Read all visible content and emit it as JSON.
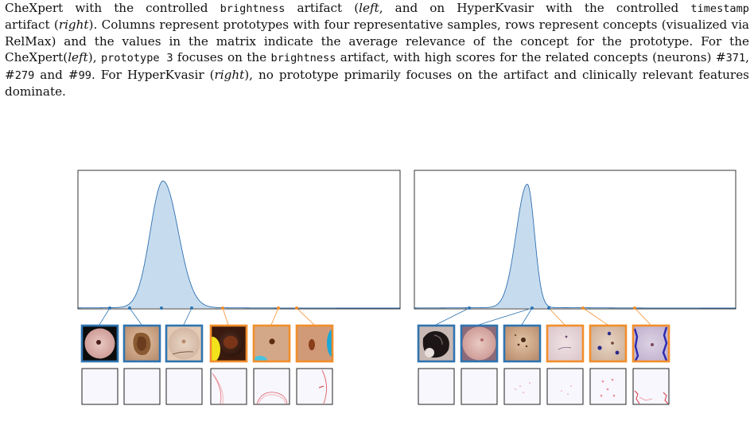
{
  "caption": {
    "line1": [
      {
        "t": "CheXpert with the controlled "
      },
      {
        "t": "brightness",
        "mono": true
      },
      {
        "t": " artifact ("
      },
      {
        "t": "left",
        "em": true
      },
      {
        "t": ", and on HyperKvasir with the controlled "
      },
      {
        "t": "timestamp",
        "mono": true
      }
    ],
    "rest": [
      {
        "t": " artifact ("
      },
      {
        "t": "right",
        "em": true
      },
      {
        "t": "). Columns represent prototypes with four representative samples, rows represent concepts (visualized via RelMax) and the values in the matrix indicate the average relevance of the concept for the prototype. For the CheXpert("
      },
      {
        "t": "left",
        "em": true
      },
      {
        "t": "), "
      },
      {
        "t": "prototype 3",
        "mono": true
      },
      {
        "t": " focuses on the "
      },
      {
        "t": "brightness",
        "mono": true
      },
      {
        "t": " artifact, with high scores for the related concepts (neurons) #"
      },
      {
        "t": "371",
        "mono": true
      },
      {
        "t": ", #"
      },
      {
        "t": "279",
        "mono": true
      },
      {
        "t": " and #"
      },
      {
        "t": "99",
        "mono": true
      },
      {
        "t": ". For HyperKvasir ("
      },
      {
        "t": "right",
        "em": true
      },
      {
        "t": "), no prototype primarily focuses on the artifact and clinically relevant features dominate."
      }
    ]
  },
  "colors": {
    "clean": "#2f74b0",
    "artifact": "#f28e2b",
    "density_fill": "#c6dcee",
    "density_line": "#2f6fb0"
  },
  "panels": [
    {
      "side": "left",
      "prototypes": [
        {
          "group": "clean",
          "image": "dark-circle-skin-lesion"
        },
        {
          "group": "clean",
          "image": "brown-irregular-skin-lesion"
        },
        {
          "group": "clean",
          "image": "pale-skin-with-hair"
        },
        {
          "group": "artifact",
          "image": "yellow-bright-patch-lesion"
        },
        {
          "group": "artifact",
          "image": "cyan-patch-small-lesion"
        },
        {
          "group": "artifact",
          "image": "blue-edge-brown-lesion"
        }
      ],
      "concepts": [
        "blank",
        "blank",
        "blank",
        "red-arc",
        "red-circle",
        "red-arc-right"
      ]
    },
    {
      "side": "right",
      "prototypes": [
        {
          "group": "clean",
          "image": "dark-black-lesion"
        },
        {
          "group": "clean",
          "image": "pink-skin-lesion"
        },
        {
          "group": "clean",
          "image": "brown-dotted-lesion"
        },
        {
          "group": "artifact",
          "image": "pale-skin-marker"
        },
        {
          "group": "artifact",
          "image": "blue-ink-dots"
        },
        {
          "group": "artifact",
          "image": "blue-ink-edges"
        }
      ],
      "concepts": [
        "blank",
        "blank",
        "red-specks",
        "red-specks-sparse",
        "red-specks-mid",
        "red-scribble"
      ]
    }
  ]
}
